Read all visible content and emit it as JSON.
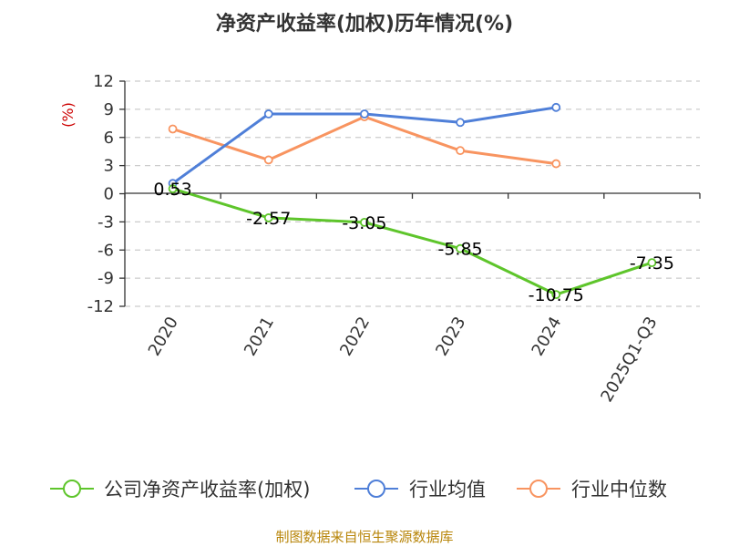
{
  "chart_data": {
    "type": "line",
    "title": "净资产收益率(加权)历年情况(%)",
    "ylabel": "(%)",
    "categories": [
      "2020",
      "2021",
      "2022",
      "2023",
      "2024",
      "2025Q1-Q3"
    ],
    "ylim": [
      -12,
      12
    ],
    "yticks": [
      12,
      9,
      6,
      3,
      0,
      -3,
      -6,
      -9,
      -12
    ],
    "grid": true,
    "legend_position": "bottom",
    "series": [
      {
        "name": "公司净资产收益率(加权)",
        "color": "#5ec52b",
        "values": [
          0.53,
          -2.57,
          -3.05,
          -5.85,
          -10.75,
          -7.35
        ],
        "labels": [
          "0.53",
          "-2.57",
          "-3.05",
          "-5.85",
          "-10.75",
          "-7.35"
        ]
      },
      {
        "name": "行业均值",
        "color": "#4f7fd8",
        "values": [
          1.1,
          8.5,
          8.5,
          7.6,
          9.2,
          null
        ]
      },
      {
        "name": "行业中位数",
        "color": "#f89460",
        "values": [
          6.9,
          3.6,
          8.2,
          4.6,
          3.2,
          null
        ]
      }
    ],
    "source": "制图数据来自恒生聚源数据库"
  }
}
